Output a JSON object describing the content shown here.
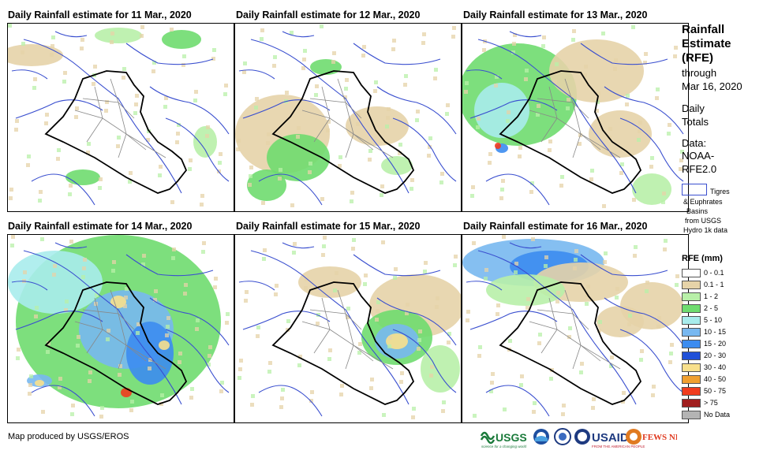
{
  "panels": [
    {
      "title": "Daily Rainfall estimate for 11 Mar., 2020"
    },
    {
      "title": "Daily Rainfall estimate for 12 Mar., 2020"
    },
    {
      "title": "Daily Rainfall estimate for 13 Mar., 2020"
    },
    {
      "title": "Daily Rainfall estimate for 14 Mar., 2020"
    },
    {
      "title": "Daily Rainfall estimate for 15 Mar., 2020"
    },
    {
      "title": "Daily Rainfall estimate for 16 Mar., 2020"
    }
  ],
  "sidebar": {
    "title_lines": [
      "Rainfall",
      "Estimate",
      "(RFE)"
    ],
    "through": "through",
    "date": "Mar 16, 2020",
    "daily": "Daily",
    "totals": "Totals",
    "data_label": "Data:",
    "data_src1": "NOAA-",
    "data_src2": "RFE2.0",
    "basin_lines": [
      "Tigres",
      "& Euphrates",
      "Basins",
      "from USGS",
      "Hydro 1k data"
    ]
  },
  "legend": {
    "title": "RFE (mm)",
    "items": [
      {
        "label": "0 - 0.1",
        "color": "#ffffff"
      },
      {
        "label": "0.1 - 1",
        "color": "#e6d3a8"
      },
      {
        "label": "1 - 2",
        "color": "#b8f0a8"
      },
      {
        "label": "2 - 5",
        "color": "#6fdc6f"
      },
      {
        "label": "5 - 10",
        "color": "#a8ecec"
      },
      {
        "label": "10 - 15",
        "color": "#78b8f0"
      },
      {
        "label": "15 - 20",
        "color": "#3c8cf0"
      },
      {
        "label": "20 - 30",
        "color": "#2050d8"
      },
      {
        "label": "30 - 40",
        "color": "#f8e08c"
      },
      {
        "label": "40 - 50",
        "color": "#f0a030"
      },
      {
        "label": "50 - 75",
        "color": "#f03c1e"
      },
      {
        "label": "> 75",
        "color": "#a01e1e"
      },
      {
        "label": "No Data",
        "color": "#b4b4b4"
      }
    ]
  },
  "footer": "Map produced by USGS/EROS",
  "logos": {
    "usgs": "USGS",
    "usgs_tag": "science for a changing world",
    "usaid": "USAID",
    "usaid_tag": "FROM THE AMERICAN PEOPLE",
    "fews": "FEWS NET"
  }
}
